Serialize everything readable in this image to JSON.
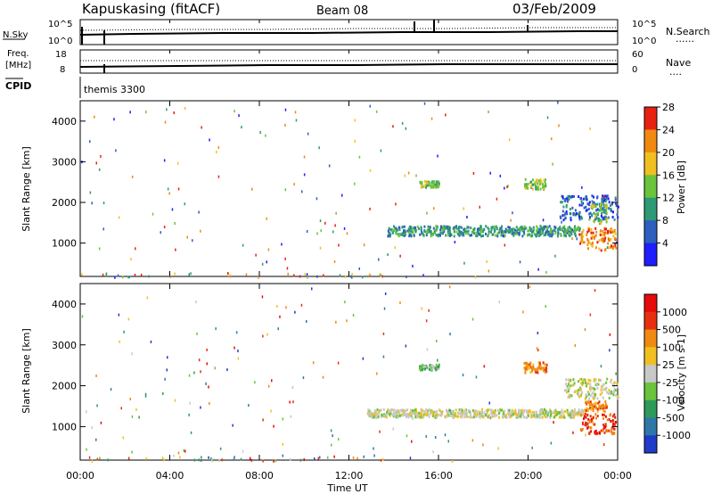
{
  "header": {
    "station": "Kapuskasing (fitACF)",
    "beam": "Beam 08",
    "date": "03/Feb/2009"
  },
  "top_panels": {
    "nsky_label": "N.Sky",
    "nsky_ticks": [
      "10^5",
      "10^0"
    ],
    "nsearch_ticks": [
      "10^5",
      "10^0"
    ],
    "nsearch_label": "N.Search",
    "nsearch_line": "......",
    "freq_label_1": "Freq.",
    "freq_label_2": "[MHz]",
    "freq_ticks": [
      "18",
      "8"
    ],
    "nave_ticks": [
      "60",
      "0"
    ],
    "nave_label": "Nave",
    "nave_line": "....",
    "cpid_label": "CPID",
    "cpid_value": "themis 3300"
  },
  "x_axis": {
    "ticks": [
      "00:00",
      "04:00",
      "08:00",
      "12:00",
      "16:00",
      "20:00",
      "00:00"
    ],
    "label": "Time UT"
  },
  "chart_data": [
    {
      "type": "heatmap",
      "ylabel": "Slant Range [km]",
      "yticks": [
        "1000",
        "2000",
        "3000",
        "4000"
      ],
      "ylim": [
        180,
        4500
      ],
      "xlim": [
        0,
        24
      ],
      "colorbar_label": "Power [dB]",
      "colorbar_ticks": [
        "4",
        "8",
        "12",
        "16",
        "20",
        "24",
        "28"
      ],
      "colorbar_colors": [
        "#1e1eff",
        "#2d5fbf",
        "#2e9a74",
        "#6ac43c",
        "#f0c020",
        "#f08a10",
        "#e82010"
      ],
      "regions": [
        {
          "t0": 13.7,
          "t1": 22.3,
          "r0": 1200,
          "r1": 1450,
          "level": 2
        },
        {
          "t0": 15.1,
          "t1": 16.0,
          "r0": 2400,
          "r1": 2550,
          "level": 3
        },
        {
          "t0": 19.8,
          "t1": 20.8,
          "r0": 2350,
          "r1": 2600,
          "level": 3
        },
        {
          "t0": 21.4,
          "t1": 24.0,
          "r0": 1600,
          "r1": 2200,
          "level": 1
        },
        {
          "t0": 22.2,
          "t1": 23.9,
          "r0": 850,
          "r1": 1400,
          "level": 5
        },
        {
          "t0": 22.7,
          "t1": 23.5,
          "r0": 1500,
          "r1": 2000,
          "level": 3
        }
      ]
    },
    {
      "type": "heatmap",
      "ylabel": "Slant Range [km]",
      "yticks": [
        "1000",
        "2000",
        "3000",
        "4000"
      ],
      "ylim": [
        180,
        4500
      ],
      "xlim": [
        0,
        24
      ],
      "colorbar_label": "Velocity [m s-1]",
      "colorbar_ticks": [
        "1000",
        "500",
        "100",
        "25",
        "-25",
        "-100",
        "-500",
        "-1000"
      ],
      "colorbar_colors": [
        "#1e3cc8",
        "#2e78a8",
        "#2e9a5a",
        "#6ac43c",
        "#c8c8c8",
        "#f0c020",
        "#f08a10",
        "#e83010",
        "#e80a0a"
      ],
      "regions": [
        {
          "t0": 12.8,
          "t1": 22.5,
          "r0": 1250,
          "r1": 1450,
          "level": 4
        },
        {
          "t0": 15.1,
          "t1": 16.0,
          "r0": 2400,
          "r1": 2550,
          "level": 3
        },
        {
          "t0": 19.8,
          "t1": 20.8,
          "r0": 2350,
          "r1": 2600,
          "level": 6
        },
        {
          "t0": 21.6,
          "t1": 24.0,
          "r0": 1700,
          "r1": 2200,
          "level": 4
        },
        {
          "t0": 22.3,
          "t1": 23.9,
          "r0": 850,
          "r1": 1350,
          "level": 7
        },
        {
          "t0": 22.5,
          "t1": 23.5,
          "r0": 1400,
          "r1": 1650,
          "level": 6
        }
      ]
    }
  ]
}
